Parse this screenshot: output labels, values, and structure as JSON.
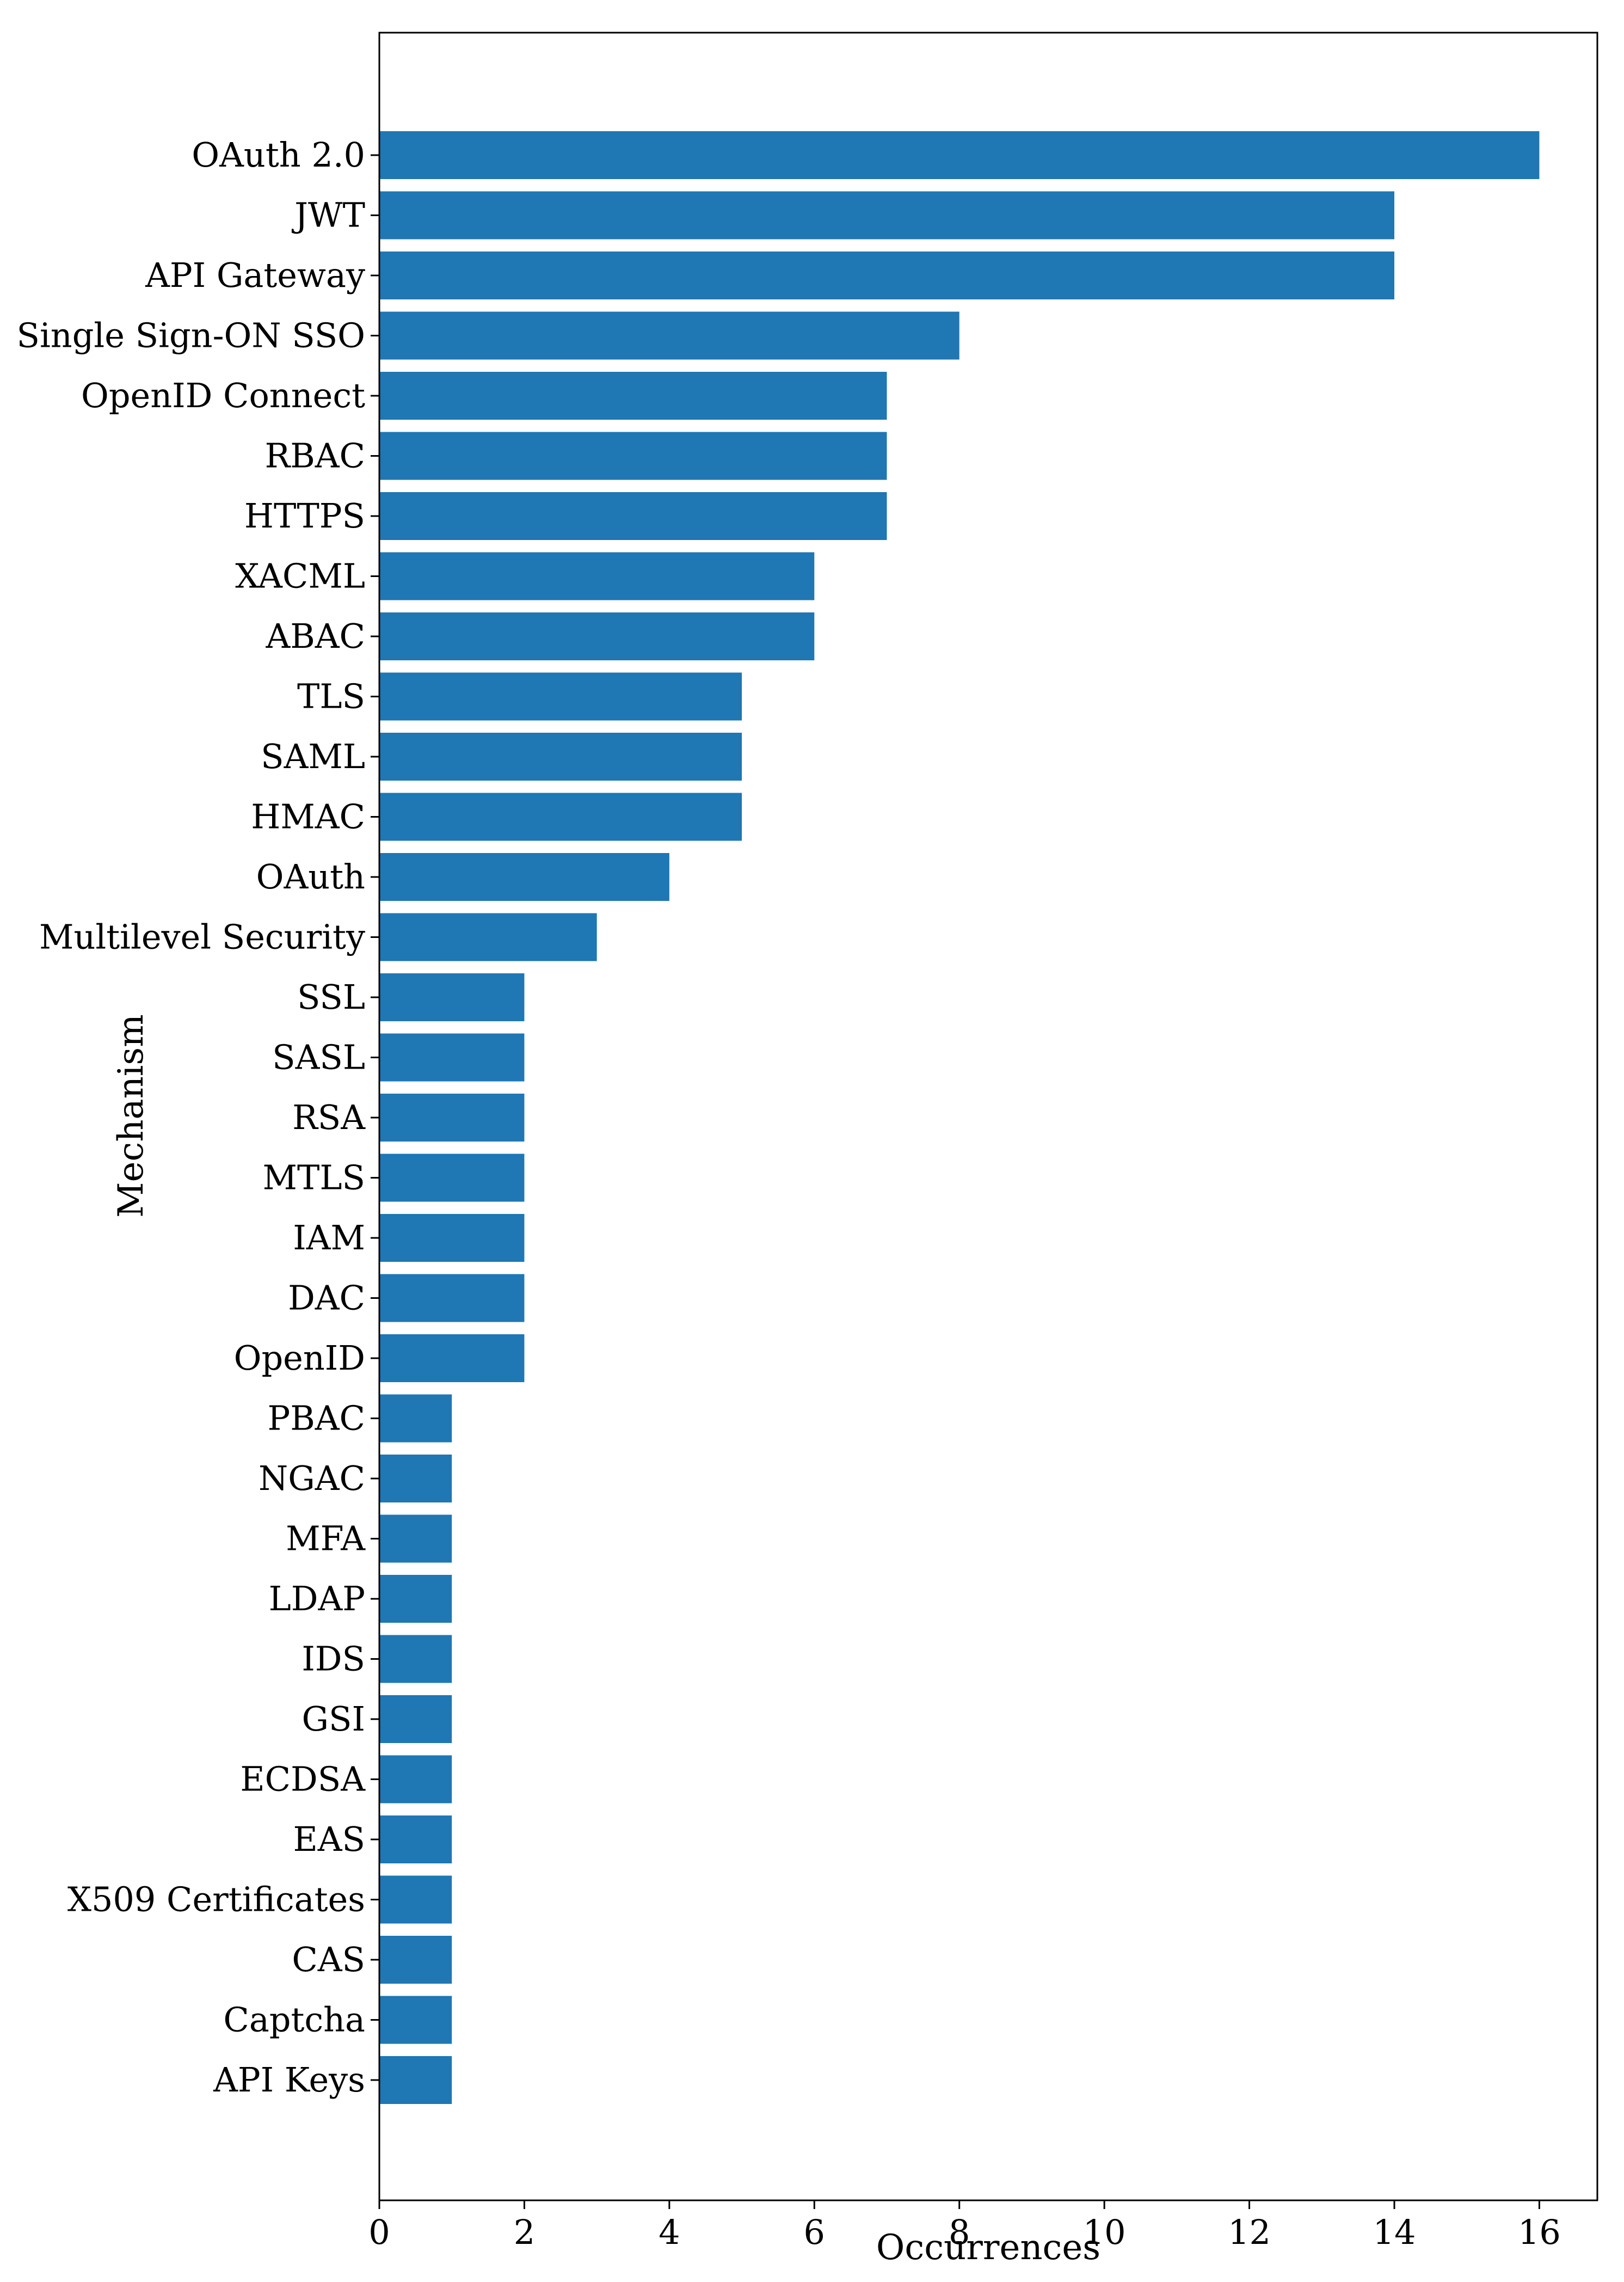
{
  "chart_data": {
    "type": "bar",
    "orientation": "horizontal",
    "title": "",
    "xlabel": "Occurrences",
    "ylabel": "Mechanism",
    "xlim": [
      0,
      16.8
    ],
    "xticks": [
      0,
      2,
      4,
      6,
      8,
      10,
      12,
      14,
      16
    ],
    "grid": false,
    "bar_color": "#1f77b4",
    "categories": [
      "OAuth 2.0",
      "JWT",
      "API Gateway",
      "Single Sign-ON SSO",
      "OpenID Connect",
      "RBAC",
      "HTTPS",
      "XACML",
      "ABAC",
      "TLS",
      "SAML",
      "HMAC",
      "OAuth",
      "Multilevel Security",
      "SSL",
      "SASL",
      "RSA",
      "MTLS",
      "IAM",
      "DAC",
      "OpenID",
      "PBAC",
      "NGAC",
      "MFA",
      "LDAP",
      "IDS",
      "GSI",
      "ECDSA",
      "EAS",
      "X509 Certificates",
      "CAS",
      "Captcha",
      "API Keys"
    ],
    "values": [
      16,
      14,
      14,
      8,
      7,
      7,
      7,
      6,
      6,
      5,
      5,
      5,
      4,
      3,
      2,
      2,
      2,
      2,
      2,
      2,
      2,
      1,
      1,
      1,
      1,
      1,
      1,
      1,
      1,
      1,
      1,
      1,
      1
    ]
  }
}
